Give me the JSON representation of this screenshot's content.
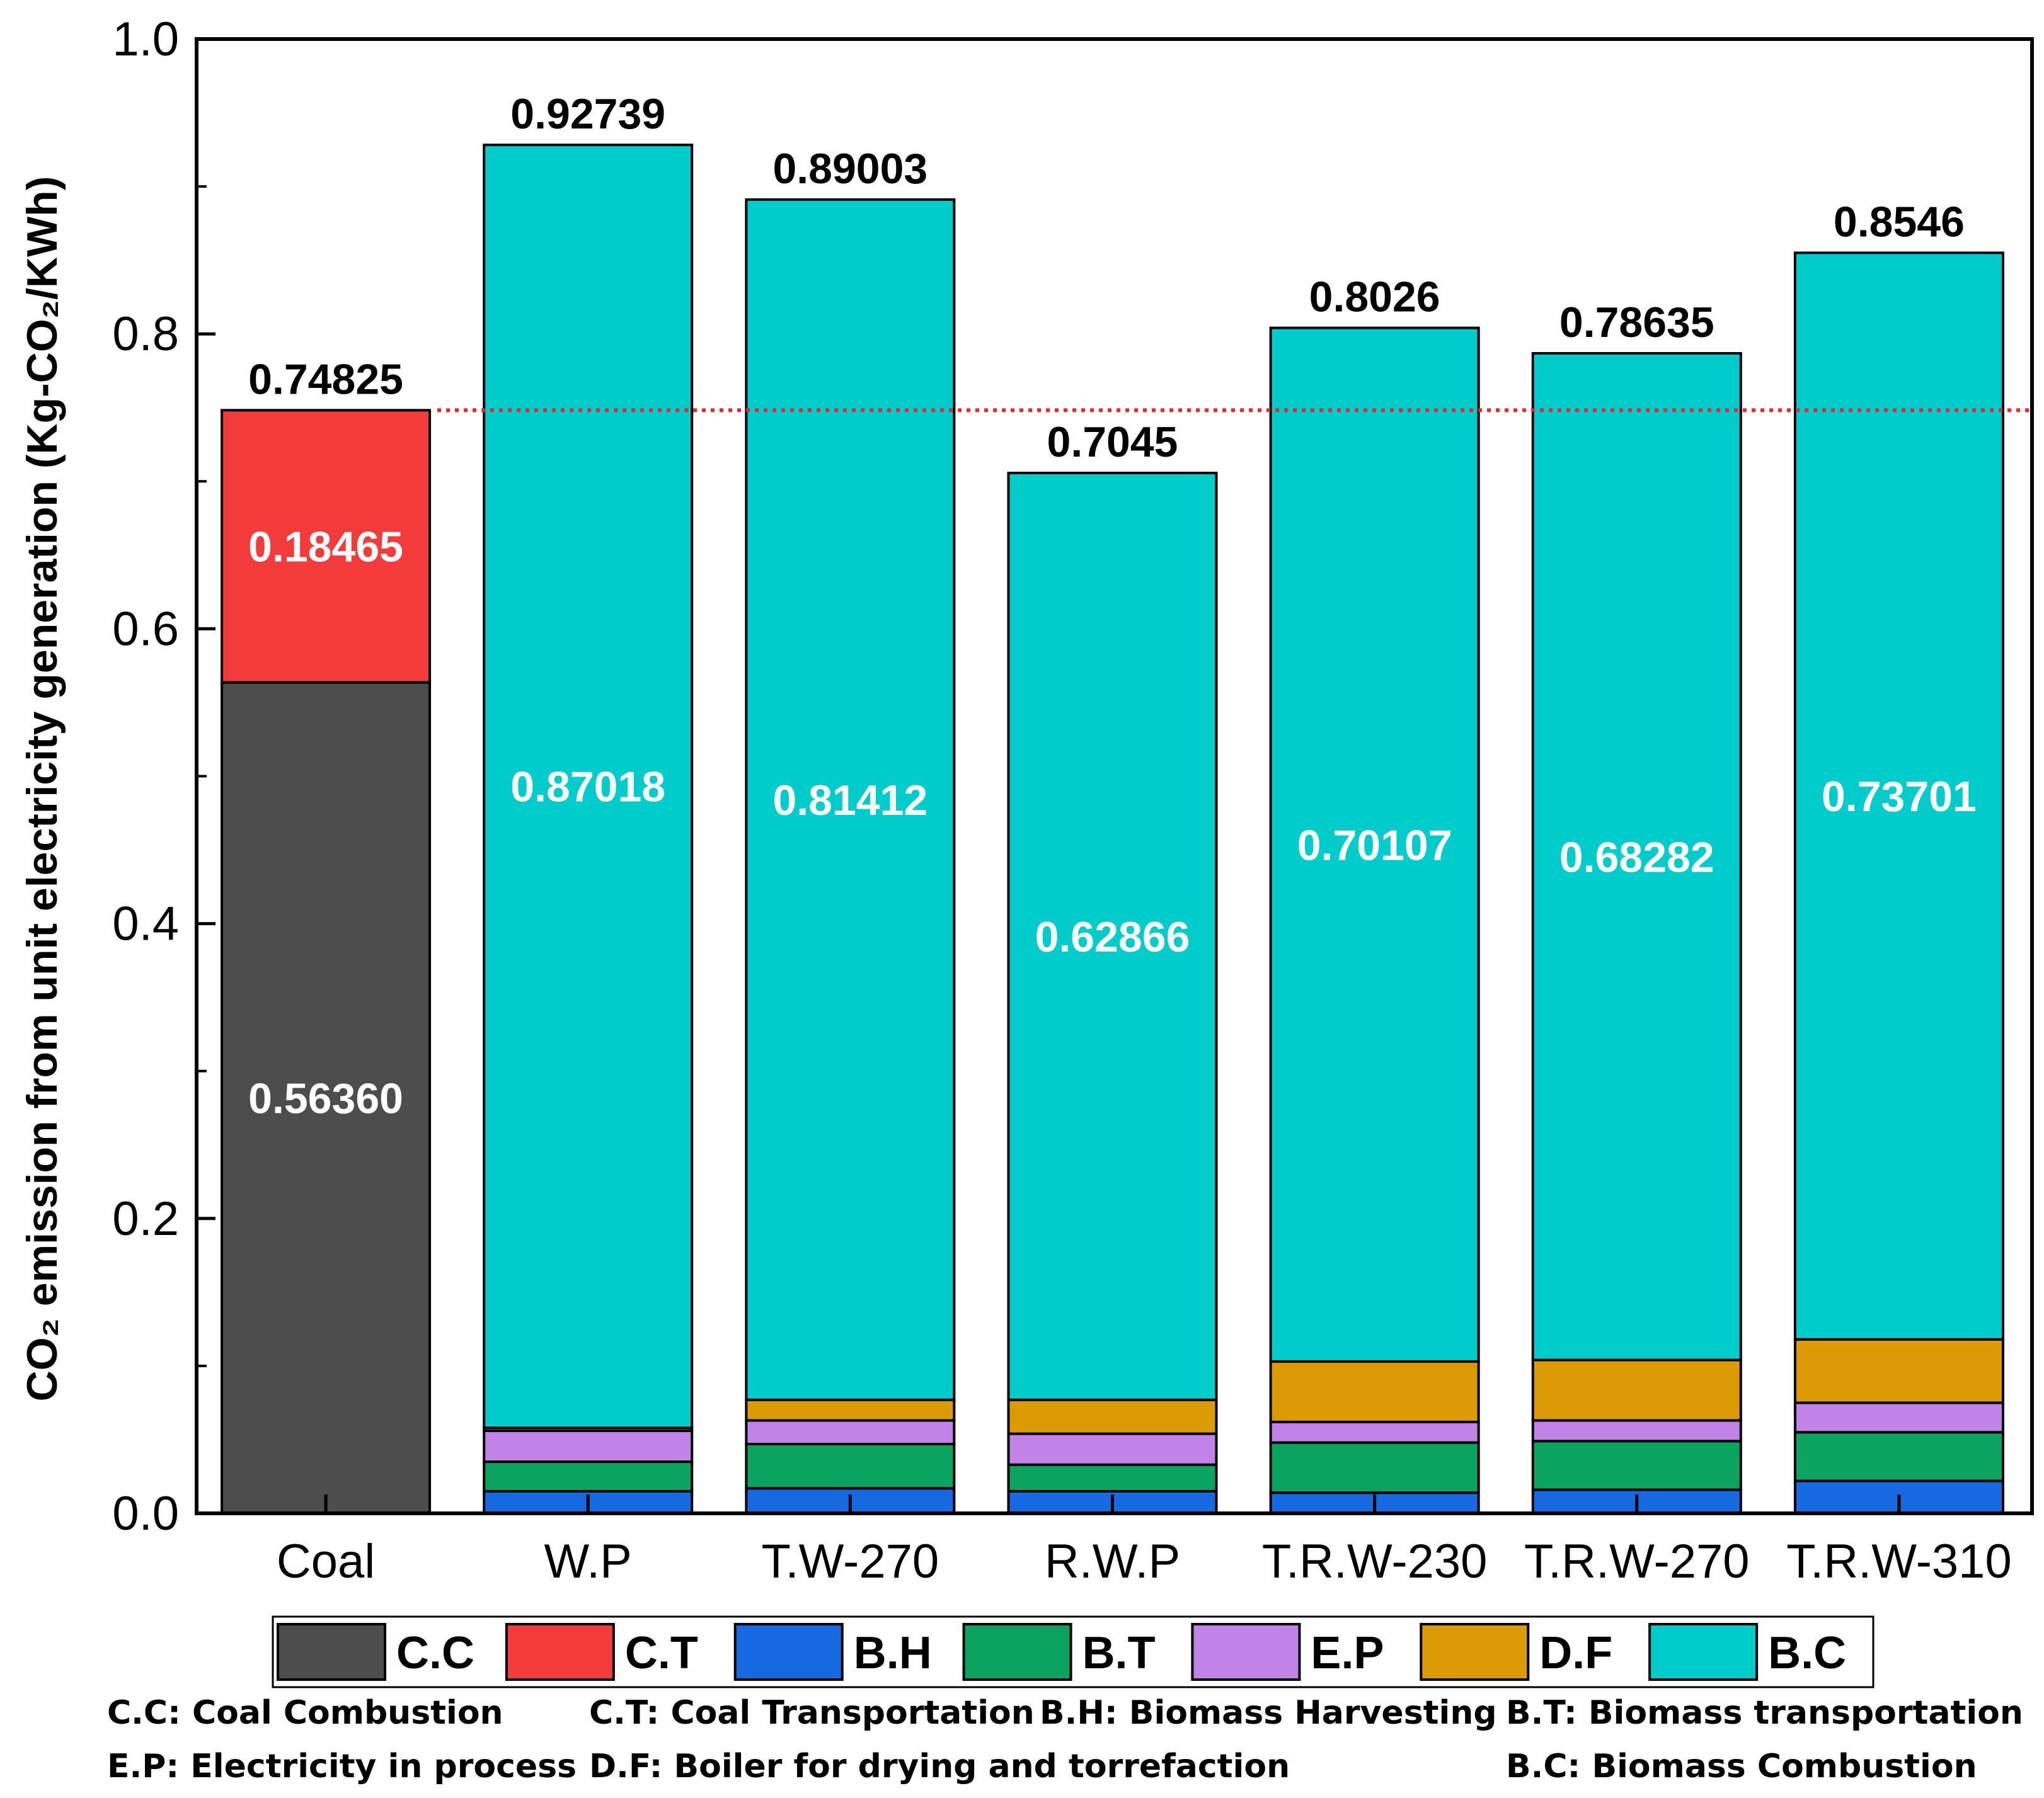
{
  "chart_data": {
    "type": "bar",
    "stacked": true,
    "ylabel": "CO₂ emission from unit electricity generation (Kg-CO₂/KWh)",
    "ylim": [
      0,
      1.0
    ],
    "yticks": [
      "0.0",
      "0.2",
      "0.4",
      "0.6",
      "0.8",
      "1.0"
    ],
    "categories": [
      "Coal",
      "W.P",
      "T.W-270",
      "R.W.P",
      "T.R.W-230",
      "T.R.W-270",
      "T.R.W-310"
    ],
    "totals": [
      "0.74825",
      "0.92739",
      "0.89003",
      "0.7045",
      "0.8026",
      "0.78635",
      "0.8546"
    ],
    "reference_line": 0.74825,
    "series": [
      {
        "name": "C.C",
        "color": "#4d4d4d",
        "values": [
          0.5636,
          0,
          0,
          0,
          0,
          0,
          0
        ],
        "labels": [
          "0.56360",
          "",
          "",
          "",
          "",
          "",
          ""
        ]
      },
      {
        "name": "C.T",
        "color": "#f33b3b",
        "values": [
          0.18465,
          0,
          0,
          0,
          0,
          0,
          0
        ],
        "labels": [
          "0.18465",
          "",
          "",
          "",
          "",
          "",
          ""
        ]
      },
      {
        "name": "B.H",
        "color": "#1669e0",
        "values": [
          0,
          0.015,
          0.017,
          0.015,
          0.014,
          0.016,
          0.022
        ],
        "labels": [
          "",
          "",
          "",
          "",
          "",
          "",
          ""
        ]
      },
      {
        "name": "B.T",
        "color": "#0aa35f",
        "values": [
          0,
          0.02,
          0.03,
          0.018,
          0.034,
          0.033,
          0.033
        ],
        "labels": [
          "",
          "",
          "",
          "",
          "",
          "",
          ""
        ]
      },
      {
        "name": "E.P",
        "color": "#c183e8",
        "values": [
          0,
          0.021,
          0.016,
          0.021,
          0.014,
          0.014,
          0.02
        ],
        "labels": [
          "",
          "",
          "",
          "",
          "",
          "",
          ""
        ]
      },
      {
        "name": "D.F",
        "color": "#dc9a04",
        "values": [
          0,
          0.002,
          0.014,
          0.023,
          0.041,
          0.041,
          0.043
        ],
        "labels": [
          "",
          "",
          "",
          "",
          "",
          "",
          ""
        ]
      },
      {
        "name": "B.C",
        "color": "#00cccc",
        "values": [
          0,
          0.87018,
          0.81412,
          0.62866,
          0.70107,
          0.68282,
          0.73701
        ],
        "labels": [
          "",
          "0.87018",
          "0.81412",
          "0.62866",
          "0.70107",
          "0.68282",
          "0.73701"
        ]
      }
    ],
    "legend": [
      "C.C",
      "C.T",
      "B.H",
      "B.T",
      "E.P",
      "D.F",
      "B.C"
    ],
    "legend_placement": "bottom",
    "grid": false
  },
  "notes": [
    "C.C: Coal Combustion",
    "C.T: Coal Transportation",
    "B.H: Biomass Harvesting",
    "B.T: Biomass transportation",
    "E.P: Electricity in process",
    "D.F: Boiler for drying and torrefaction",
    "B.C: Biomass Combustion"
  ]
}
